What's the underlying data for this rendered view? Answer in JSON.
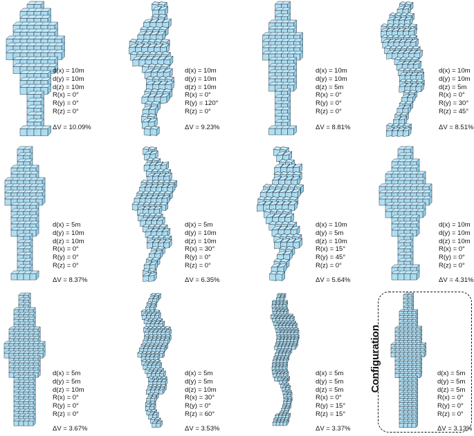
{
  "colors": {
    "cube_fill": "#a9dcf2",
    "cube_top": "#c9ecfb",
    "cube_side": "#8fcbe8",
    "cube_edge": "#2a3640"
  },
  "configuration_label": "Configuration",
  "variants": [
    {
      "params": [
        "d(x) = 10m",
        "d(y) = 10m",
        "d(z) = 10m",
        "R(x) = 0°",
        "R(y) = 0°",
        "R(z) = 0°"
      ],
      "dv": "ΔV = 10.09%"
    },
    {
      "params": [
        "d(x) = 10m",
        "d(y) = 10m",
        "d(z) = 10m",
        "R(x) = 0°",
        "R(y) = 120°",
        "R(z) = 0°"
      ],
      "dv": "ΔV = 9.23%"
    },
    {
      "params": [
        "d(x) = 10m",
        "d(y) = 10m",
        "d(z) = 5m",
        "R(x) = 0°",
        "R(y) = 0°",
        "R(z) = 0°"
      ],
      "dv": "ΔV = 8.81%"
    },
    {
      "params": [
        "d(x) = 10m",
        "d(y) = 10m",
        "d(z) = 5m",
        "R(x) = 0°",
        "R(y) = 30°",
        "R(z) = 45°"
      ],
      "dv": "ΔV = 8.51%"
    },
    {
      "params": [
        "d(x) = 5m",
        "d(y) = 10m",
        "d(z) = 10m",
        "R(x) = 0°",
        "R(y) = 0°",
        "R(z) = 0°"
      ],
      "dv": "ΔV = 8.37%"
    },
    {
      "params": [
        "d(x) = 5m",
        "d(y) = 10m",
        "d(z) = 10m",
        "R(x) = 30°",
        "R(y) = 0°",
        "R(z) = 0°"
      ],
      "dv": "ΔV = 6.35%"
    },
    {
      "params": [
        "d(x) = 10m",
        "d(y) = 5m",
        "d(z) = 10m",
        "R(x) = 15°",
        "R(y) = 45°",
        "R(z) = 0°"
      ],
      "dv": "ΔV = 5.64%"
    },
    {
      "params": [
        "d(x) = 10m",
        "d(y) = 10m",
        "d(z) = 10m",
        "R(x) = 0°",
        "R(y) = 0°",
        "R(z) = 0°"
      ],
      "dv": "ΔV = 4.31%"
    },
    {
      "params": [
        "d(x) = 5m",
        "d(y) = 5m",
        "d(z) = 10m",
        "R(x) = 0°",
        "R(y) = 0°",
        "R(z) = 0°"
      ],
      "dv": "ΔV = 3.67%"
    },
    {
      "params": [
        "d(x) = 5m",
        "d(y) = 5m",
        "d(z) = 10m",
        "R(x) = 30°",
        "R(y) = 0°",
        "R(z) = 60°"
      ],
      "dv": "ΔV = 3.53%"
    },
    {
      "params": [
        "d(x) = 5m",
        "d(y) = 5m",
        "d(z) = 5m",
        "R(x) = 0°",
        "R(y) = 15°",
        "R(z) = 15°"
      ],
      "dv": "ΔV = 3.37%"
    },
    {
      "params": [
        "d(x) = 5m",
        "d(y) = 5m",
        "d(z) = 5m",
        "R(x) = 0°",
        "R(y) = 0°",
        "R(z) = 0°"
      ],
      "dv": "ΔV = 3.13%"
    }
  ]
}
